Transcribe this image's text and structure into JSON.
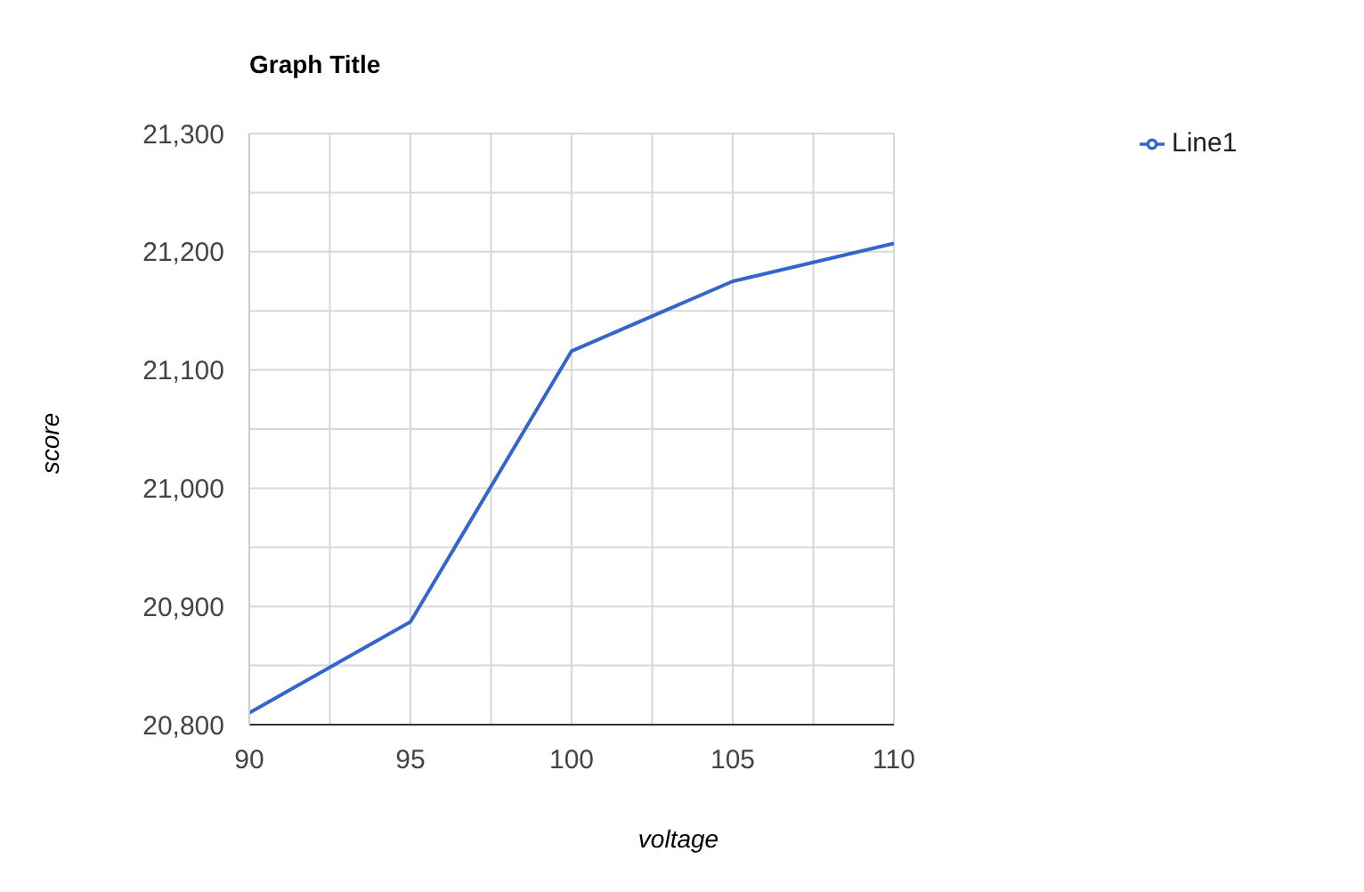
{
  "chart_data": {
    "type": "line",
    "title": "Graph Title",
    "xlabel": "voltage",
    "ylabel": "score",
    "x": [
      90,
      95,
      100,
      105,
      110
    ],
    "series": [
      {
        "name": "Line1",
        "color": "#3366cc",
        "values": [
          20810,
          20887,
          21116,
          21175,
          21207
        ]
      }
    ],
    "xlim": [
      90,
      110
    ],
    "xticks": [
      90,
      {
        "value": 92.5,
        "label": null
      },
      95,
      {
        "value": 97.5,
        "label": null
      },
      100,
      {
        "value": 102.5,
        "label": null
      },
      105,
      {
        "value": 107.5,
        "label": null
      },
      110
    ],
    "ylim": [
      20800,
      21300
    ],
    "yticks": [
      {
        "value": 20800,
        "label": "20,800"
      },
      {
        "value": 20850,
        "label": null
      },
      {
        "value": 20900,
        "label": "20,900"
      },
      {
        "value": 20950,
        "label": null
      },
      {
        "value": 21000,
        "label": "21,000"
      },
      {
        "value": 21050,
        "label": null
      },
      {
        "value": 21100,
        "label": "21,100"
      },
      {
        "value": 21150,
        "label": null
      },
      {
        "value": 21200,
        "label": "21,200"
      },
      {
        "value": 21250,
        "label": null
      },
      {
        "value": 21300,
        "label": "21,300"
      }
    ],
    "grid": true,
    "legend": "top right",
    "marker": "none",
    "line_style": "solid"
  }
}
